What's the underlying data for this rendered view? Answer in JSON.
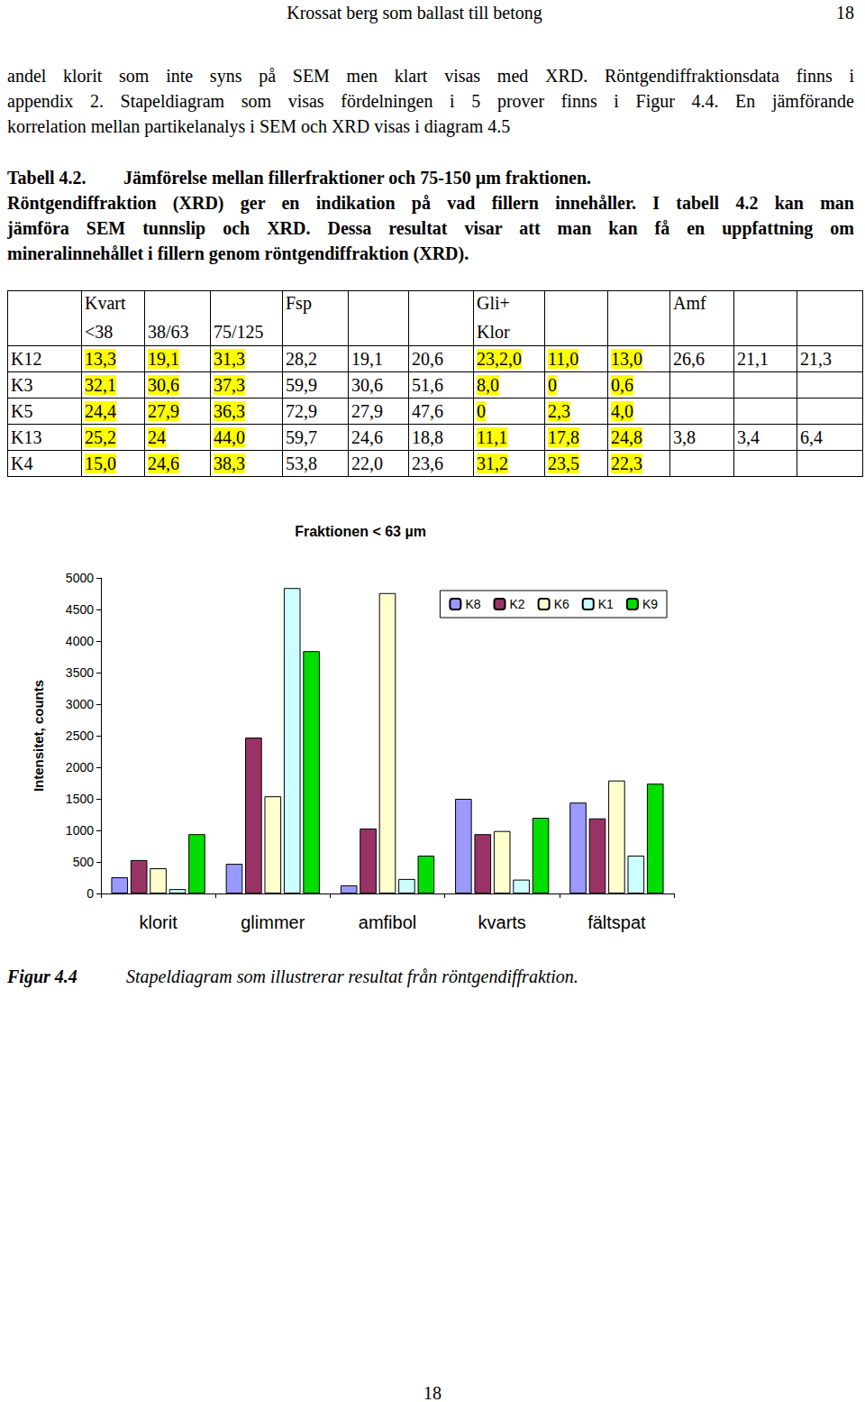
{
  "header": {
    "title": "Krossat berg som ballast till betong",
    "page": "18"
  },
  "paragraph": [
    "andel klorit som inte syns på SEM men klart visas med XRD. Röntgendiffraktionsdata finns i",
    "appendix 2. Stapeldiagram som visas fördelningen i 5 prover finns i Figur 4.4. En jämförande",
    "korrelation mellan partikelanalys i SEM och XRD visas i diagram 4.5"
  ],
  "table_caption": {
    "label": "Tabell 4.2.",
    "lines": [
      "Jämförelse mellan fillerfraktioner och 75-150 µm fraktionen.",
      "Röntgendiffraktion (XRD) ger en indikation på vad fillern innehåller. I tabell 4.2 kan man",
      "jämföra SEM tunnslip och XRD. Dessa resultat visar att man kan få en uppfattning om",
      "mineralinnehållet i fillern genom röntgendiffraktion (XRD)."
    ]
  },
  "table": {
    "header": [
      null,
      {
        "top": "Kvart",
        "bottom": "<38"
      },
      {
        "bottom": "38/63"
      },
      {
        "bottom": "75/125"
      },
      {
        "top": "Fsp"
      },
      null,
      null,
      {
        "top": "Gli+",
        "bottom": "Klor"
      },
      null,
      null,
      {
        "top": "Amf"
      },
      null,
      null
    ],
    "rows": [
      [
        "K12",
        "13,3",
        "19,1",
        "31,3",
        "28,2",
        "19,1",
        "20,6",
        "23,2,0",
        "11,0",
        "13,0",
        "26,6",
        "21,1",
        "21,3"
      ],
      [
        "K3",
        "32,1",
        "30,6",
        "37,3",
        "59,9",
        "30,6",
        "51,6",
        "8,0",
        "0",
        "0,6",
        null,
        null,
        null
      ],
      [
        "K5",
        "24,4",
        "27,9",
        "36,3",
        "72,9",
        "27,9",
        "47,6",
        "0",
        "2,3",
        "4,0",
        null,
        null,
        null
      ],
      [
        "K13",
        "25,2",
        "24",
        "44,0",
        "59,7",
        "24,6",
        "18,8",
        "11,1",
        "17,8",
        "24,8",
        "3,8",
        "3,4",
        "6,4"
      ],
      [
        "K4",
        "15,0",
        "24,6",
        "38,3",
        "53,8",
        "22,0",
        "23,6",
        "31,2",
        "23,5",
        "22,3",
        null,
        null,
        null
      ]
    ]
  },
  "chart_data": {
    "type": "bar",
    "title": "Fraktionen < 63 µm",
    "y_label": "Intensitet, counts",
    "categories": [
      "klorit",
      "glimmer",
      "amfibol",
      "kvarts",
      "fältspat"
    ],
    "series": [
      {
        "name": "K8",
        "color": "#9999ff",
        "values": [
          257,
          470,
          130,
          1500,
          1440
        ]
      },
      {
        "name": "K2",
        "color": "#993366",
        "values": [
          530,
          2470,
          1030,
          940,
          1190
        ]
      },
      {
        "name": "K6",
        "color": "#ffffcc",
        "values": [
          400,
          1540,
          4760,
          990,
          1790
        ]
      },
      {
        "name": "K1",
        "color": "#ccffff",
        "values": [
          70,
          4840,
          230,
          220,
          600
        ]
      },
      {
        "name": "K9",
        "color": "#00dd00",
        "values": [
          940,
          3840,
          600,
          1200,
          1740
        ]
      }
    ],
    "ylim": [
      0,
      5000
    ],
    "yticks": [
      0,
      500,
      1000,
      1500,
      2000,
      2500,
      3000,
      3500,
      4000,
      4500,
      5000
    ],
    "grid": false,
    "legend": "top-right"
  },
  "figure_caption": {
    "label": "Figur 4.4",
    "text": "Stapeldiagram som illustrerar resultat från röntgendiffraktion."
  },
  "page_number": "18"
}
